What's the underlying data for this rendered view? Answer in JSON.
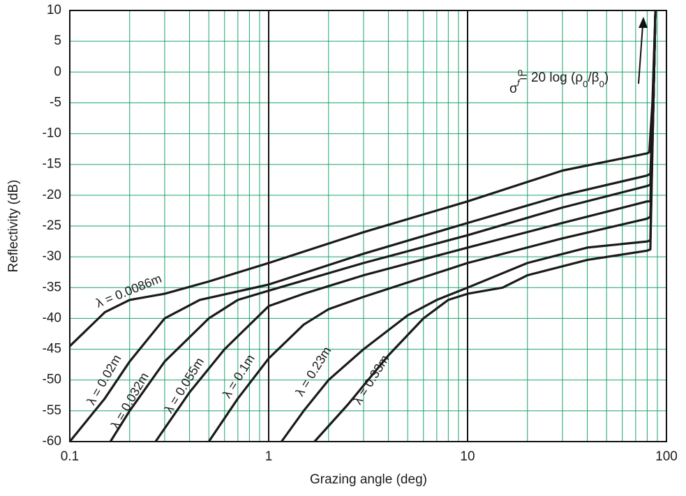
{
  "chart_data": {
    "type": "line",
    "x_label": "Grazing angle (deg)",
    "y_label": "Reflectivity (dB)",
    "x_scale": "log",
    "xlim": [
      0.1,
      100
    ],
    "xticks": [
      0.1,
      1,
      10,
      100
    ],
    "ylim": [
      -60,
      10
    ],
    "yticks": [
      10,
      5,
      0,
      -5,
      -10,
      -15,
      -20,
      -25,
      -30,
      -35,
      -40,
      -45,
      -50,
      -55,
      -60
    ],
    "grid": true,
    "grid_color": "#1aa36b",
    "annotation": [
      "σ",
      "0",
      "f",
      "= 20 log (ρ",
      "0",
      "/β",
      "0",
      ")"
    ],
    "series": [
      {
        "name": "λ = 0.0086m",
        "color": "#1a1a1a",
        "x": [
          0.1,
          0.15,
          0.2,
          0.3,
          0.5,
          1,
          3,
          10,
          30,
          80,
          82,
          85,
          88
        ],
        "values": [
          -44.5,
          -39,
          -37,
          -36,
          -34,
          -31,
          -26,
          -21,
          -16,
          -13.2,
          -13,
          -5,
          10
        ]
      },
      {
        "name": "λ = 0.02m",
        "color": "#1a1a1a",
        "x": [
          0.1,
          0.15,
          0.2,
          0.3,
          0.45,
          1,
          3,
          10,
          30,
          80,
          83,
          86,
          88
        ],
        "values": [
          -60,
          -53,
          -47,
          -40,
          -37,
          -34.5,
          -29.5,
          -24.5,
          -20,
          -16.8,
          -16.5,
          -5,
          10
        ]
      },
      {
        "name": "λ = 0.032m",
        "color": "#1a1a1a",
        "x": [
          0.16,
          0.2,
          0.3,
          0.5,
          0.7,
          1,
          3,
          10,
          30,
          80,
          83,
          86,
          88
        ],
        "values": [
          -60,
          -55,
          -47,
          -40,
          -37,
          -35.5,
          -31,
          -26.5,
          -22,
          -18.5,
          -18.3,
          -5,
          10
        ]
      },
      {
        "name": "λ = 0.055m",
        "color": "#1a1a1a",
        "x": [
          0.27,
          0.4,
          0.6,
          1,
          1.5,
          3,
          10,
          30,
          80,
          83,
          86,
          88
        ],
        "values": [
          -60,
          -52,
          -45,
          -38,
          -36,
          -33,
          -28.5,
          -24.5,
          -21,
          -21,
          -5,
          10
        ]
      },
      {
        "name": "λ = 0.1m",
        "color": "#1a1a1a",
        "x": [
          0.5,
          0.7,
          1,
          1.5,
          2,
          3,
          10,
          30,
          80,
          83,
          86,
          88
        ],
        "values": [
          -60,
          -53,
          -46.5,
          -41,
          -38.5,
          -36.5,
          -31,
          -27,
          -23.8,
          -23.5,
          -5,
          10
        ]
      },
      {
        "name": "λ = 0.23m",
        "color": "#1a1a1a",
        "x": [
          1.16,
          1.5,
          2,
          3,
          5,
          7,
          10,
          20,
          40,
          80,
          83,
          86,
          88
        ],
        "values": [
          -60,
          -55,
          -50,
          -45,
          -39.5,
          -37,
          -35,
          -31,
          -28.5,
          -27.5,
          -27.3,
          -5,
          10
        ]
      },
      {
        "name": "λ = 0.33m",
        "color": "#1a1a1a",
        "x": [
          1.7,
          2.5,
          4,
          6,
          8,
          10,
          15,
          20,
          40,
          80,
          83,
          86,
          88
        ],
        "values": [
          -60,
          -54,
          -46,
          -40,
          -37,
          -36,
          -35,
          -33,
          -30.5,
          -29,
          -28.8,
          -5,
          10
        ]
      }
    ]
  }
}
